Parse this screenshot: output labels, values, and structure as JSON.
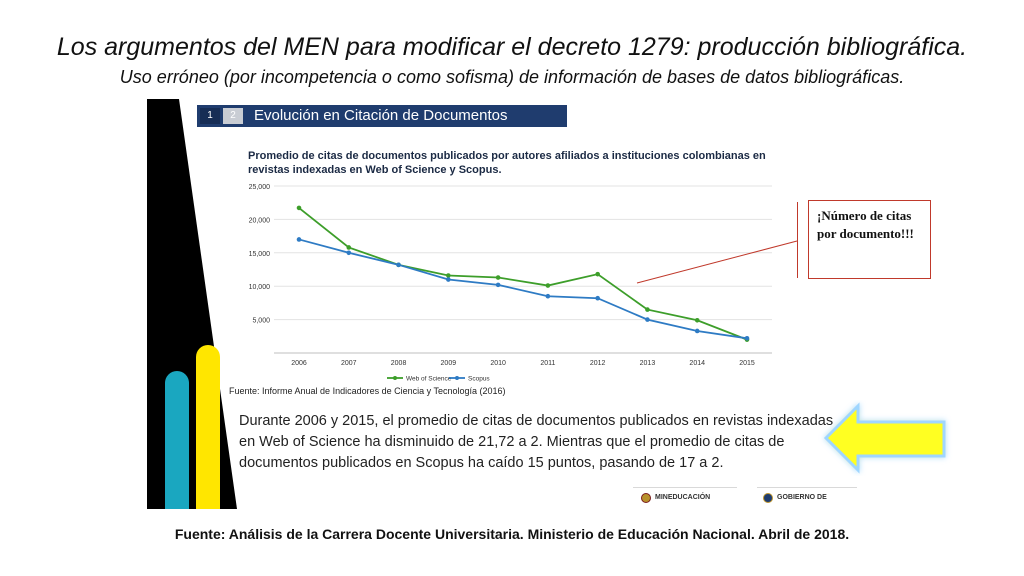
{
  "slide": {
    "title": "Los argumentos del MEN para modificar el decreto 1279: producción bibliográfica.",
    "subtitle": "Uso erróneo (por incompetencia o como sofisma) de información de bases de datos bibliográficas.",
    "footer": "Fuente: Análisis de la Carrera Docente Universitaria. Ministerio de Educación Nacional. Abril de 2018."
  },
  "embedded": {
    "tabs": [
      "1",
      "2"
    ],
    "header_title": "Evolución en Citación de Documentos",
    "source": "Fuente: Informe Anual de Indicadores de Ciencia y Tecnología (2016)",
    "note": "Durante 2006 y 2015, el promedio de citas de documentos publicados en revistas indexadas en Web of Science ha disminuido de 21,72 a 2. Mientras que el promedio de citas de documentos publicados en Scopus ha caído 15 puntos, pasando de 17 a 2.",
    "logos": [
      "MINEDUCACIÓN",
      "GOBIERNO DE COLOMBIA"
    ]
  },
  "callout": {
    "text": "¡Número de citas por documento!!!"
  },
  "colors": {
    "header_bg": "#1f3c6e",
    "wos": "#3d9e2a",
    "scopus": "#2e7bc4",
    "callout_border": "#c0392b",
    "arrow_fill": "#ffff22",
    "deco_teal": "#1aa7c0",
    "deco_yellow": "#ffe600"
  },
  "chart_data": {
    "type": "line",
    "title": "Promedio de citas de documentos publicados por autores afiliados a instituciones colombianas en revistas indexadas en Web of Science y Scopus.",
    "xlabel": "",
    "ylabel": "",
    "x": [
      "2006",
      "2007",
      "2008",
      "2009",
      "2010",
      "2011",
      "2012",
      "2013",
      "2014",
      "2015"
    ],
    "ylim": [
      0,
      25000
    ],
    "yticks": [
      "",
      "5,000",
      "10,000",
      "15,000",
      "20,000",
      "25,000"
    ],
    "grid": true,
    "legend_position": "bottom",
    "series": [
      {
        "name": "Web of Science",
        "values": [
          21720,
          15800,
          13200,
          11600,
          11300,
          10100,
          11800,
          6500,
          4900,
          2000
        ]
      },
      {
        "name": "Scopus",
        "values": [
          17000,
          15000,
          13200,
          11000,
          10200,
          8500,
          8200,
          5000,
          3300,
          2200
        ]
      }
    ]
  }
}
